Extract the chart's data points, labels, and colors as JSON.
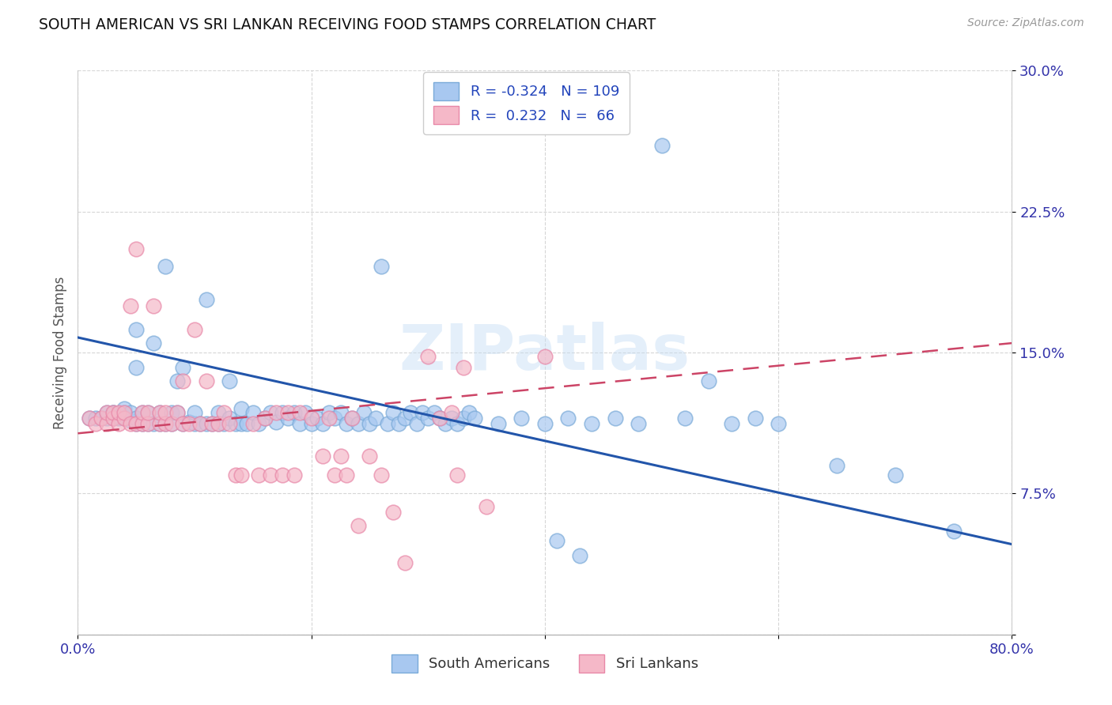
{
  "title": "SOUTH AMERICAN VS SRI LANKAN RECEIVING FOOD STAMPS CORRELATION CHART",
  "source": "Source: ZipAtlas.com",
  "ylabel": "Receiving Food Stamps",
  "xlim": [
    0.0,
    0.8
  ],
  "ylim": [
    0.0,
    0.3
  ],
  "xticks": [
    0.0,
    0.2,
    0.4,
    0.6,
    0.8
  ],
  "xticklabels": [
    "0.0%",
    "",
    "",
    "",
    "80.0%"
  ],
  "yticks": [
    0.0,
    0.075,
    0.15,
    0.225,
    0.3
  ],
  "yticklabels": [
    "",
    "7.5%",
    "15.0%",
    "22.5%",
    "30.0%"
  ],
  "blue_color": "#a8c8f0",
  "pink_color": "#f5b8c8",
  "blue_edge_color": "#7aaad8",
  "pink_edge_color": "#e888a8",
  "trendline_blue_color": "#2255aa",
  "trendline_pink_color": "#cc4466",
  "watermark": "ZIPatlas",
  "blue_trend_x": [
    0.0,
    0.8
  ],
  "blue_trend_y": [
    0.158,
    0.048
  ],
  "pink_trend_x": [
    0.0,
    0.8
  ],
  "pink_trend_y": [
    0.107,
    0.155
  ],
  "blue_points_x": [
    0.01,
    0.015,
    0.02,
    0.025,
    0.025,
    0.03,
    0.03,
    0.03,
    0.035,
    0.035,
    0.04,
    0.04,
    0.04,
    0.04,
    0.045,
    0.045,
    0.05,
    0.05,
    0.05,
    0.05,
    0.055,
    0.055,
    0.06,
    0.06,
    0.065,
    0.065,
    0.07,
    0.07,
    0.075,
    0.075,
    0.08,
    0.08,
    0.085,
    0.085,
    0.09,
    0.09,
    0.095,
    0.1,
    0.1,
    0.105,
    0.11,
    0.11,
    0.115,
    0.12,
    0.12,
    0.125,
    0.13,
    0.13,
    0.135,
    0.14,
    0.14,
    0.145,
    0.15,
    0.155,
    0.16,
    0.165,
    0.17,
    0.175,
    0.18,
    0.185,
    0.19,
    0.195,
    0.2,
    0.205,
    0.21,
    0.215,
    0.22,
    0.225,
    0.23,
    0.235,
    0.24,
    0.245,
    0.25,
    0.255,
    0.26,
    0.265,
    0.27,
    0.275,
    0.28,
    0.285,
    0.29,
    0.295,
    0.3,
    0.305,
    0.31,
    0.315,
    0.32,
    0.325,
    0.33,
    0.335,
    0.34,
    0.36,
    0.38,
    0.4,
    0.42,
    0.44,
    0.46,
    0.48,
    0.5,
    0.52,
    0.54,
    0.56,
    0.58,
    0.6,
    0.65,
    0.7,
    0.75,
    0.41,
    0.43
  ],
  "blue_points_y": [
    0.115,
    0.115,
    0.115,
    0.115,
    0.118,
    0.115,
    0.118,
    0.118,
    0.115,
    0.116,
    0.115,
    0.116,
    0.118,
    0.12,
    0.114,
    0.118,
    0.112,
    0.115,
    0.142,
    0.162,
    0.112,
    0.118,
    0.112,
    0.118,
    0.112,
    0.155,
    0.112,
    0.118,
    0.112,
    0.196,
    0.112,
    0.118,
    0.118,
    0.135,
    0.112,
    0.142,
    0.113,
    0.112,
    0.118,
    0.112,
    0.112,
    0.178,
    0.112,
    0.112,
    0.118,
    0.112,
    0.115,
    0.135,
    0.112,
    0.112,
    0.12,
    0.112,
    0.118,
    0.112,
    0.115,
    0.118,
    0.113,
    0.118,
    0.115,
    0.118,
    0.112,
    0.118,
    0.112,
    0.115,
    0.112,
    0.118,
    0.115,
    0.118,
    0.112,
    0.115,
    0.112,
    0.118,
    0.112,
    0.115,
    0.196,
    0.112,
    0.118,
    0.112,
    0.115,
    0.118,
    0.112,
    0.118,
    0.115,
    0.118,
    0.115,
    0.112,
    0.115,
    0.112,
    0.115,
    0.118,
    0.115,
    0.112,
    0.115,
    0.112,
    0.115,
    0.112,
    0.115,
    0.112,
    0.26,
    0.115,
    0.135,
    0.112,
    0.115,
    0.112,
    0.09,
    0.085,
    0.055,
    0.05,
    0.042
  ],
  "pink_points_x": [
    0.01,
    0.015,
    0.02,
    0.025,
    0.025,
    0.03,
    0.03,
    0.035,
    0.035,
    0.04,
    0.04,
    0.045,
    0.045,
    0.05,
    0.05,
    0.055,
    0.055,
    0.06,
    0.06,
    0.065,
    0.07,
    0.07,
    0.075,
    0.075,
    0.08,
    0.085,
    0.09,
    0.09,
    0.095,
    0.1,
    0.105,
    0.11,
    0.115,
    0.12,
    0.125,
    0.13,
    0.135,
    0.14,
    0.15,
    0.155,
    0.16,
    0.165,
    0.17,
    0.175,
    0.18,
    0.185,
    0.19,
    0.2,
    0.21,
    0.215,
    0.22,
    0.225,
    0.23,
    0.235,
    0.24,
    0.25,
    0.26,
    0.27,
    0.28,
    0.3,
    0.31,
    0.32,
    0.325,
    0.33,
    0.35,
    0.4
  ],
  "pink_points_y": [
    0.115,
    0.112,
    0.115,
    0.112,
    0.118,
    0.115,
    0.118,
    0.112,
    0.118,
    0.115,
    0.118,
    0.112,
    0.175,
    0.112,
    0.205,
    0.112,
    0.118,
    0.112,
    0.118,
    0.175,
    0.112,
    0.118,
    0.112,
    0.118,
    0.112,
    0.118,
    0.112,
    0.135,
    0.112,
    0.162,
    0.112,
    0.135,
    0.112,
    0.112,
    0.118,
    0.112,
    0.085,
    0.085,
    0.112,
    0.085,
    0.115,
    0.085,
    0.118,
    0.085,
    0.118,
    0.085,
    0.118,
    0.115,
    0.095,
    0.115,
    0.085,
    0.095,
    0.085,
    0.115,
    0.058,
    0.095,
    0.085,
    0.065,
    0.038,
    0.148,
    0.115,
    0.118,
    0.085,
    0.142,
    0.068,
    0.148
  ]
}
